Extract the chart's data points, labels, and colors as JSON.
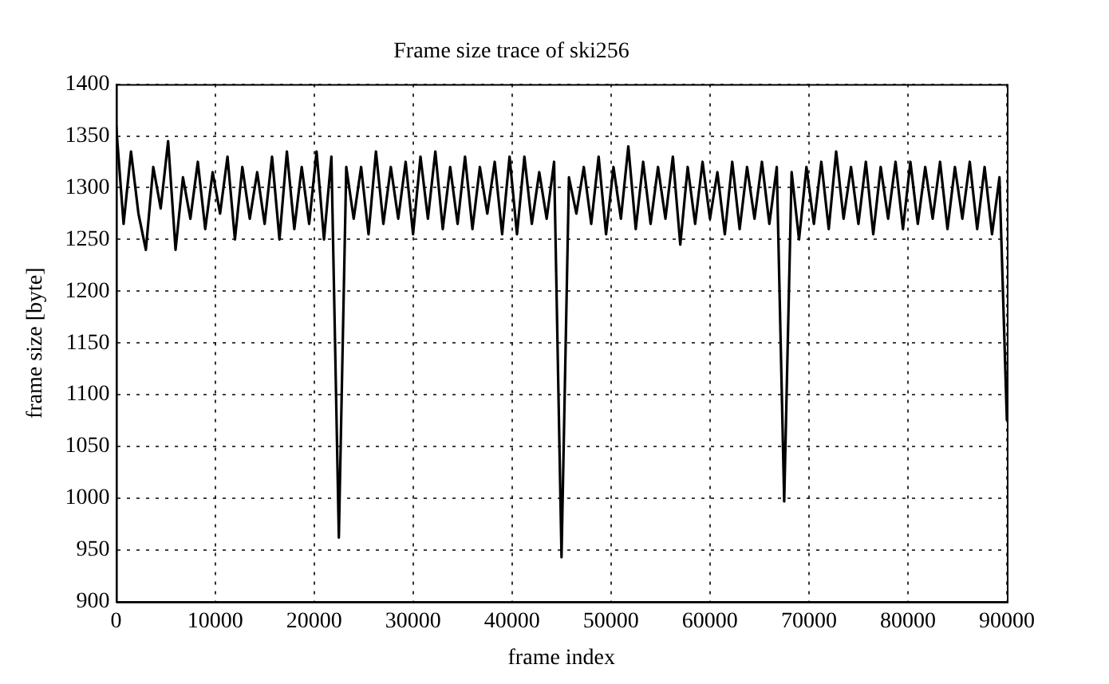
{
  "chart_data": {
    "type": "line",
    "title": "Frame size trace of ski256",
    "xlabel": "frame index",
    "ylabel": "frame size [byte]",
    "xlim": [
      0,
      90000
    ],
    "xticks": [
      0,
      10000,
      20000,
      30000,
      40000,
      50000,
      60000,
      70000,
      80000,
      90000
    ],
    "ylim": [
      900,
      1400
    ],
    "yticks": [
      900,
      950,
      1000,
      1050,
      1100,
      1150,
      1200,
      1250,
      1300,
      1350,
      1400
    ],
    "grid": true,
    "legend": false,
    "marker": "none",
    "line_style": "solid",
    "series": [
      {
        "color": "#000000",
        "x": [
          0,
          750,
          1500,
          2250,
          3000,
          3750,
          4500,
          5250,
          6000,
          6750,
          7500,
          8250,
          9000,
          9750,
          10500,
          11250,
          12000,
          12750,
          13500,
          14250,
          15000,
          15750,
          16500,
          17250,
          18000,
          18750,
          19500,
          20250,
          21000,
          21750,
          22500,
          23250,
          24000,
          24750,
          25500,
          26250,
          27000,
          27750,
          28500,
          29250,
          30000,
          30750,
          31500,
          32250,
          33000,
          33750,
          34500,
          35250,
          36000,
          36750,
          37500,
          38250,
          39000,
          39750,
          40500,
          41250,
          42000,
          42750,
          43500,
          44250,
          45000,
          45750,
          46500,
          47250,
          48000,
          48750,
          49500,
          50250,
          51000,
          51750,
          52500,
          53250,
          54000,
          54750,
          55500,
          56250,
          57000,
          57750,
          58500,
          59250,
          60000,
          60750,
          61500,
          62250,
          63000,
          63750,
          64500,
          65250,
          66000,
          66750,
          67500,
          68250,
          69000,
          69750,
          70500,
          71250,
          72000,
          72750,
          73500,
          74250,
          75000,
          75750,
          76500,
          77250,
          78000,
          78750,
          79500,
          80250,
          81000,
          81750,
          82500,
          83250,
          84000,
          84750,
          85500,
          86250,
          87000,
          87750,
          88500,
          89250,
          90000
        ],
        "values": [
          1360,
          1265,
          1335,
          1275,
          1240,
          1320,
          1280,
          1345,
          1240,
          1310,
          1270,
          1325,
          1260,
          1315,
          1275,
          1330,
          1250,
          1320,
          1270,
          1315,
          1265,
          1330,
          1250,
          1335,
          1260,
          1320,
          1265,
          1335,
          1250,
          1330,
          962,
          1320,
          1270,
          1320,
          1255,
          1335,
          1265,
          1320,
          1270,
          1325,
          1255,
          1330,
          1270,
          1335,
          1260,
          1320,
          1265,
          1330,
          1260,
          1320,
          1275,
          1325,
          1255,
          1330,
          1255,
          1330,
          1265,
          1315,
          1270,
          1325,
          943,
          1310,
          1275,
          1320,
          1265,
          1330,
          1255,
          1320,
          1270,
          1340,
          1260,
          1325,
          1265,
          1320,
          1270,
          1330,
          1245,
          1320,
          1265,
          1325,
          1270,
          1315,
          1255,
          1325,
          1260,
          1320,
          1270,
          1325,
          1265,
          1320,
          997,
          1315,
          1250,
          1320,
          1265,
          1325,
          1260,
          1335,
          1270,
          1320,
          1265,
          1325,
          1255,
          1320,
          1270,
          1325,
          1260,
          1325,
          1265,
          1320,
          1270,
          1325,
          1260,
          1320,
          1270,
          1325,
          1260,
          1320,
          1255,
          1310,
          1075
        ]
      }
    ]
  }
}
